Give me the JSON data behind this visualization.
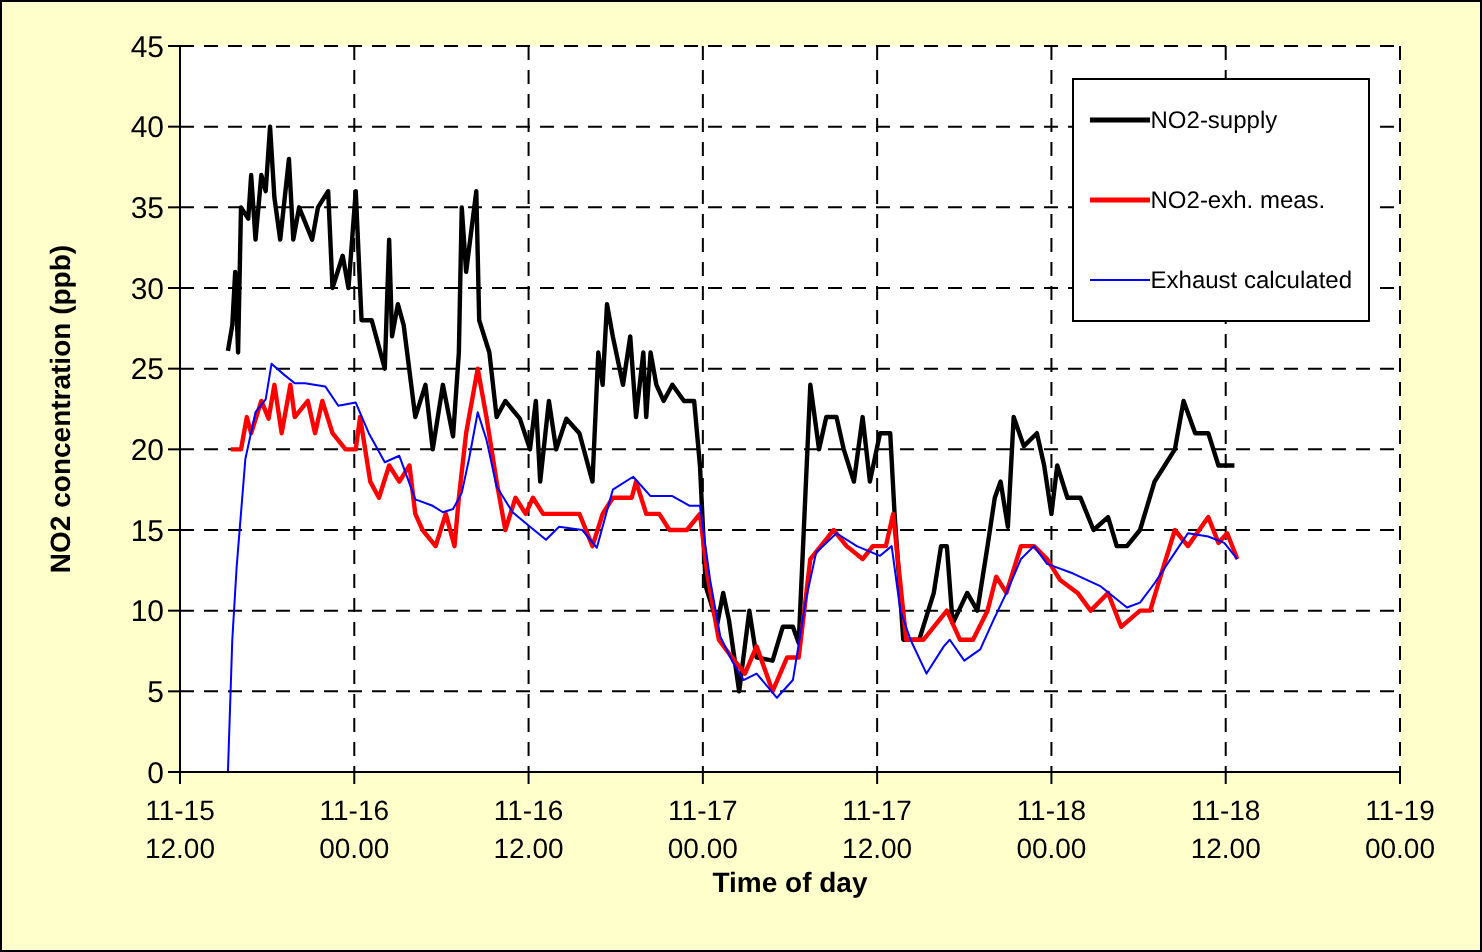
{
  "chart_data": {
    "type": "line",
    "xlabel": "Time of day",
    "ylabel": "NO2 concentration (ppb)",
    "xlim": [
      "--11-15T12:00",
      "--11-19T00:00"
    ],
    "xticks": [
      {
        "value": "--11-15T12:00",
        "label": "11-15\n12.00"
      },
      {
        "value": "--11-16T00:00",
        "label": "11-16\n00.00"
      },
      {
        "value": "--11-16T12:00",
        "label": "11-16\n12.00"
      },
      {
        "value": "--11-17T00:00",
        "label": "11-17\n00.00"
      },
      {
        "value": "--11-17T12:00",
        "label": "11-17\n12.00"
      },
      {
        "value": "--11-18T00:00",
        "label": "11-18\n00.00"
      },
      {
        "value": "--11-18T12:00",
        "label": "11-18\n12.00"
      },
      {
        "value": "--11-19T00:00",
        "label": "11-19\n00.00"
      }
    ],
    "ylim": [
      0,
      45
    ],
    "yticks": [
      0,
      5,
      10,
      15,
      20,
      25,
      30,
      35,
      40,
      45
    ],
    "grid": true,
    "legend": "top right",
    "marker": "none",
    "series": [
      {
        "name": "NO2-supply",
        "color": "#000000",
        "x": [
          "--11-15T15:18",
          "--11-15T15:36",
          "--11-15T15:48",
          "--11-15T16:00",
          "--11-15T16:12",
          "--11-15T16:42",
          "--11-15T16:54",
          "--11-15T17:12",
          "--11-15T17:36",
          "--11-15T17:54",
          "--11-15T18:12",
          "--11-15T18:30",
          "--11-15T18:54",
          "--11-15T19:30",
          "--11-15T19:48",
          "--11-15T20:12",
          "--11-15T21:06",
          "--11-15T21:30",
          "--11-15T22:12",
          "--11-15T22:30",
          "--11-15T23:12",
          "--11-15T23:36",
          "--11-16T00:06",
          "--11-16T00:30",
          "--11-16T01:12",
          "--11-16T02:06",
          "--11-16T02:24",
          "--11-16T02:36",
          "--11-16T03:00",
          "--11-16T03:24",
          "--11-16T04:12",
          "--11-16T04:54",
          "--11-16T05:24",
          "--11-16T06:06",
          "--11-16T06:48",
          "--11-16T07:12",
          "--11-16T07:24",
          "--11-16T07:42",
          "--11-16T08:24",
          "--11-16T08:36",
          "--11-16T09:18",
          "--11-16T09:48",
          "--11-16T10:24",
          "--11-16T11:24",
          "--11-16T12:06",
          "--11-16T12:30",
          "--11-16T12:48",
          "--11-16T13:24",
          "--11-16T13:54",
          "--11-16T14:36",
          "--11-16T15:30",
          "--11-16T16:24",
          "--11-16T16:48",
          "--11-16T17:06",
          "--11-16T17:24",
          "--11-16T17:48",
          "--11-16T18:30",
          "--11-16T19:00",
          "--11-16T19:24",
          "--11-16T19:54",
          "--11-16T20:06",
          "--11-16T20:24",
          "--11-16T20:48",
          "--11-16T21:18",
          "--11-16T21:54",
          "--11-16T22:42",
          "--11-16T23:24",
          "--11-16T23:48",
          "--11-17T00:12",
          "--11-17T01:00",
          "--11-17T01:24",
          "--11-17T01:48",
          "--11-17T02:30",
          "--11-17T03:12",
          "--11-17T03:42",
          "--11-17T04:48",
          "--11-17T05:30",
          "--11-17T06:12",
          "--11-17T06:36",
          "--11-17T07:24",
          "--11-17T08:00",
          "--11-17T08:30",
          "--11-17T09:12",
          "--11-17T09:42",
          "--11-17T10:24",
          "--11-17T11:00",
          "--11-17T11:30",
          "--11-17T12:12",
          "--11-17T12:54",
          "--11-17T13:12",
          "--11-17T13:48",
          "--11-17T14:54",
          "--11-17T15:54",
          "--11-17T16:24",
          "--11-17T16:48",
          "--11-17T17:12",
          "--11-17T18:12",
          "--11-17T18:54",
          "--11-17T19:36",
          "--11-17T20:06",
          "--11-17T20:30",
          "--11-17T21:00",
          "--11-17T21:24",
          "--11-17T22:06",
          "--11-17T23:00",
          "--11-17T23:30",
          "--11-18T00:00",
          "--11-18T00:24",
          "--11-18T01:06",
          "--11-18T02:00",
          "--11-18T02:54",
          "--11-18T03:54",
          "--11-18T04:30",
          "--11-18T05:12",
          "--11-18T06:06",
          "--11-18T07:06",
          "--11-18T07:48",
          "--11-18T08:30",
          "--11-18T09:06",
          "--11-18T09:54",
          "--11-18T10:48",
          "--11-18T11:30",
          "--11-18T12:36"
        ],
        "values": [
          26.1,
          27.7,
          31,
          26,
          35,
          34.3,
          37,
          33,
          37,
          36,
          40,
          35.6,
          33,
          38,
          33,
          35,
          33,
          35,
          36,
          30,
          32,
          30,
          36,
          28,
          28,
          25,
          33,
          27,
          29,
          27.7,
          22,
          24,
          20,
          24,
          20.8,
          26,
          35,
          31,
          36,
          28,
          26,
          22,
          23,
          21.9,
          20,
          23,
          18,
          23,
          20,
          21.9,
          21,
          18,
          26,
          24,
          29,
          27,
          24,
          27,
          22,
          26,
          22,
          26,
          24,
          23,
          24,
          23,
          23,
          19,
          11.5,
          9.2,
          11.1,
          9.4,
          5,
          10,
          7.1,
          6.9,
          9,
          9,
          8,
          24,
          20,
          22,
          22,
          20,
          18,
          22,
          18,
          21,
          21,
          16,
          8.2,
          8.2,
          11.1,
          14,
          14,
          9.2,
          11.1,
          10,
          14,
          17,
          18,
          15.2,
          22,
          20.2,
          21,
          19,
          16,
          19,
          17,
          17,
          15,
          15.8,
          14,
          14,
          15,
          18,
          19,
          20,
          23,
          21,
          21,
          19,
          19
        ]
      },
      {
        "name": "NO2-exh. meas.",
        "color": "#ff0000",
        "x": [
          "--11-15T15:30",
          "--11-15T16:12",
          "--11-15T16:36",
          "--11-15T16:54",
          "--11-15T17:36",
          "--11-15T18:06",
          "--11-15T18:30",
          "--11-15T19:00",
          "--11-15T19:36",
          "--11-15T19:54",
          "--11-15T20:48",
          "--11-15T21:18",
          "--11-15T21:48",
          "--11-15T22:30",
          "--11-15T23:24",
          "--11-16T00:06",
          "--11-16T00:24",
          "--11-16T01:06",
          "--11-16T01:42",
          "--11-16T02:24",
          "--11-16T03:06",
          "--11-16T03:48",
          "--11-16T04:12",
          "--11-16T04:42",
          "--11-16T05:36",
          "--11-16T06:18",
          "--11-16T06:54",
          "--11-16T07:12",
          "--11-16T07:42",
          "--11-16T08:30",
          "--11-16T09:06",
          "--11-16T09:48",
          "--11-16T10:24",
          "--11-16T11:06",
          "--11-16T11:48",
          "--11-16T12:18",
          "--11-16T13:00",
          "--11-16T14:06",
          "--11-16T15:30",
          "--11-16T16:24",
          "--11-16T17:06",
          "--11-16T17:48",
          "--11-16T19:06",
          "--11-16T19:24",
          "--11-16T20:06",
          "--11-16T21:00",
          "--11-16T21:42",
          "--11-16T22:54",
          "--11-16T23:48",
          "--11-17T00:18",
          "--11-17T00:54",
          "--11-17T01:06",
          "--11-17T02:00",
          "--11-17T02:54",
          "--11-17T03:42",
          "--11-17T04:48",
          "--11-17T05:48",
          "--11-17T06:36",
          "--11-17T07:24",
          "--11-17T08:18",
          "--11-17T09:00",
          "--11-17T09:54",
          "--11-17T11:00",
          "--11-17T11:42",
          "--11-17T12:36",
          "--11-17T13:06",
          "--11-17T14:00",
          "--11-17T15:12",
          "--11-17T16:48",
          "--11-17T17:42",
          "--11-17T18:36",
          "--11-17T19:36",
          "--11-17T20:12",
          "--11-17T20:54",
          "--11-17T21:54",
          "--11-17T22:48",
          "--11-17T23:42",
          "--11-18T00:36",
          "--11-18T01:48",
          "--11-18T02:42",
          "--11-18T03:54",
          "--11-18T04:48",
          "--11-18T06:06",
          "--11-18T06:48",
          "--11-18T07:30",
          "--11-18T08:30",
          "--11-18T09:24",
          "--11-18T10:48",
          "--11-18T11:30",
          "--11-18T12:06",
          "--11-18T12:48"
        ],
        "values": [
          20,
          20,
          22,
          21,
          23,
          21.9,
          24,
          21,
          24,
          22,
          23,
          21,
          23,
          21,
          20,
          20,
          22,
          18,
          17,
          19,
          18,
          19,
          16,
          15,
          14,
          16,
          14,
          17,
          21,
          25,
          22,
          18,
          15,
          17,
          16,
          17,
          16,
          16,
          16,
          14,
          16,
          17,
          17,
          18,
          16,
          16,
          15,
          15,
          16,
          12.3,
          9.2,
          8.2,
          7.1,
          6.1,
          7.8,
          5,
          7.1,
          7.1,
          13.2,
          14.2,
          15,
          14,
          13.2,
          14,
          14,
          16,
          8.2,
          8.2,
          10,
          8.2,
          8.2,
          10,
          12.1,
          11.1,
          14,
          14,
          13.2,
          11.9,
          11.1,
          10,
          11.1,
          9,
          10,
          10,
          12.1,
          15,
          14,
          15.8,
          14.2,
          14.8,
          13.2
        ]
      },
      {
        "name": "Exhaust calculated",
        "color": "#0000ff",
        "x": [
          "--11-15T15:18",
          "--11-15T15:36",
          "--11-15T15:54",
          "--11-15T16:30",
          "--11-15T17:12",
          "--11-15T17:54",
          "--11-15T18:18",
          "--11-15T19:12",
          "--11-15T19:54",
          "--11-15T20:36",
          "--11-15T22:00",
          "--11-15T22:54",
          "--11-16T00:06",
          "--11-16T01:00",
          "--11-16T02:06",
          "--11-16T03:06",
          "--11-16T04:12",
          "--11-16T05:24",
          "--11-16T06:06",
          "--11-16T06:48",
          "--11-16T07:24",
          "--11-16T07:54",
          "--11-16T08:30",
          "--11-16T09:06",
          "--11-16T09:48",
          "--11-16T10:54",
          "--11-16T12:06",
          "--11-16T13:12",
          "--11-16T14:06",
          "--11-16T15:42",
          "--11-16T16:42",
          "--11-16T17:48",
          "--11-16T19:12",
          "--11-16T20:24",
          "--11-16T21:54",
          "--11-16T23:06",
          "--11-16T23:48",
          "--11-17T00:30",
          "--11-17T01:12",
          "--11-17T02:00",
          "--11-17T02:48",
          "--11-17T03:42",
          "--11-17T05:06",
          "--11-17T06:12",
          "--11-17T07:06",
          "--11-17T07:48",
          "--11-17T09:12",
          "--11-17T10:36",
          "--11-17T12:12",
          "--11-17T13:00",
          "--11-17T13:36",
          "--11-17T14:18",
          "--11-17T15:24",
          "--11-17T16:36",
          "--11-17T17:00",
          "--11-17T18:00",
          "--11-17T19:06",
          "--11-17T20:00",
          "--11-17T20:54",
          "--11-17T21:54",
          "--11-17T22:48",
          "--11-17T23:42",
          "--11-18T01:30",
          "--11-18T03:24",
          "--11-18T05:12",
          "--11-18T06:06",
          "--11-18T07:06",
          "--11-18T08:30",
          "--11-18T09:24",
          "--11-18T10:48",
          "--11-18T11:54",
          "--11-18T12:48"
        ],
        "values": [
          0,
          8.2,
          12.7,
          19.4,
          22.3,
          23.1,
          25.3,
          24.6,
          24.1,
          24.1,
          23.9,
          22.7,
          22.9,
          21,
          19.2,
          19.6,
          16.9,
          16.5,
          16.1,
          16.3,
          17.3,
          19.4,
          22.3,
          20.6,
          17.7,
          16.1,
          15.2,
          14.4,
          15.2,
          15,
          13.9,
          17.5,
          18.3,
          17.1,
          17.1,
          16.5,
          16.5,
          11.9,
          8.4,
          6.9,
          5.7,
          6.1,
          4.6,
          5.7,
          10.7,
          13.6,
          14.8,
          14,
          13.4,
          14,
          10,
          8.2,
          6.1,
          7.8,
          8.2,
          6.9,
          7.6,
          9.4,
          11.1,
          13.2,
          14,
          12.9,
          12.3,
          11.5,
          10.2,
          10.5,
          11.7,
          13.6,
          14.8,
          14.6,
          14.2,
          13.2
        ]
      }
    ]
  }
}
